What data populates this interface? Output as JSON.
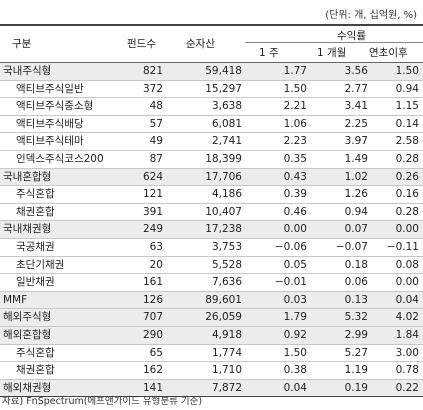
{
  "unit": "(단위: 개, 십억원, %)",
  "headers": {
    "category": "구분",
    "funds": "펀드수",
    "assets": "순자산",
    "returns": "수익률",
    "w1": "1 주",
    "m1": "1 개월",
    "ytd": "연초이후"
  },
  "rows": [
    {
      "name": "국내주식형",
      "funds": "821",
      "assets": "59,418",
      "w1": "1.77",
      "m1": "3.56",
      "ytd": "1.50",
      "group": true
    },
    {
      "name": "액티브주식일반",
      "funds": "372",
      "assets": "15,297",
      "w1": "1.50",
      "m1": "2.77",
      "ytd": "0.94",
      "group": false
    },
    {
      "name": "액티브주식중소형",
      "funds": "48",
      "assets": "3,638",
      "w1": "2.21",
      "m1": "3.41",
      "ytd": "1.15",
      "group": false
    },
    {
      "name": "액티브주식배당",
      "funds": "57",
      "assets": "6,081",
      "w1": "1.06",
      "m1": "2.25",
      "ytd": "0.14",
      "group": false
    },
    {
      "name": "액티브주식테마",
      "funds": "49",
      "assets": "2,741",
      "w1": "2.23",
      "m1": "3.97",
      "ytd": "2.58",
      "group": false
    },
    {
      "name": "인덱스주식코스200",
      "funds": "87",
      "assets": "18,399",
      "w1": "0.35",
      "m1": "1.49",
      "ytd": "0.28",
      "group": false
    },
    {
      "name": "국내혼합형",
      "funds": "624",
      "assets": "17,706",
      "w1": "0.43",
      "m1": "1.02",
      "ytd": "0.26",
      "group": true
    },
    {
      "name": "주식혼합",
      "funds": "121",
      "assets": "4,186",
      "w1": "0.39",
      "m1": "1.26",
      "ytd": "0.16",
      "group": false
    },
    {
      "name": "채권혼합",
      "funds": "391",
      "assets": "10,407",
      "w1": "0.46",
      "m1": "0.94",
      "ytd": "0.28",
      "group": false
    },
    {
      "name": "국내채권형",
      "funds": "249",
      "assets": "17,238",
      "w1": "0.00",
      "m1": "0.07",
      "ytd": "0.00",
      "group": true
    },
    {
      "name": "국공채권",
      "funds": "63",
      "assets": "3,753",
      "w1": "−0.06",
      "m1": "−0.07",
      "ytd": "−0.11",
      "group": false
    },
    {
      "name": "초단기채권",
      "funds": "20",
      "assets": "5,528",
      "w1": "0.05",
      "m1": "0.18",
      "ytd": "0.08",
      "group": false
    },
    {
      "name": "일반채권",
      "funds": "161",
      "assets": "7,636",
      "w1": "−0.01",
      "m1": "0.06",
      "ytd": "0.00",
      "group": false
    },
    {
      "name": "MMF",
      "funds": "126",
      "assets": "89,601",
      "w1": "0.03",
      "m1": "0.13",
      "ytd": "0.04",
      "group": true
    },
    {
      "name": "해외주식형",
      "funds": "707",
      "assets": "26,059",
      "w1": "1.79",
      "m1": "5.32",
      "ytd": "4.02",
      "group": true
    },
    {
      "name": "해외혼합형",
      "funds": "290",
      "assets": "4,918",
      "w1": "0.92",
      "m1": "2.99",
      "ytd": "1.84",
      "group": true
    },
    {
      "name": "주식혼합",
      "funds": "65",
      "assets": "1,774",
      "w1": "1.50",
      "m1": "5.27",
      "ytd": "3.00",
      "group": false
    },
    {
      "name": "채권혼합",
      "funds": "162",
      "assets": "1,710",
      "w1": "0.38",
      "m1": "1.19",
      "ytd": "0.78",
      "group": false
    },
    {
      "name": "해외채권형",
      "funds": "141",
      "assets": "7,872",
      "w1": "0.04",
      "m1": "0.19",
      "ytd": "0.22",
      "group": true
    }
  ],
  "source": "자료) FnSpectrum(에프앤가이드 유형분류 기준)"
}
